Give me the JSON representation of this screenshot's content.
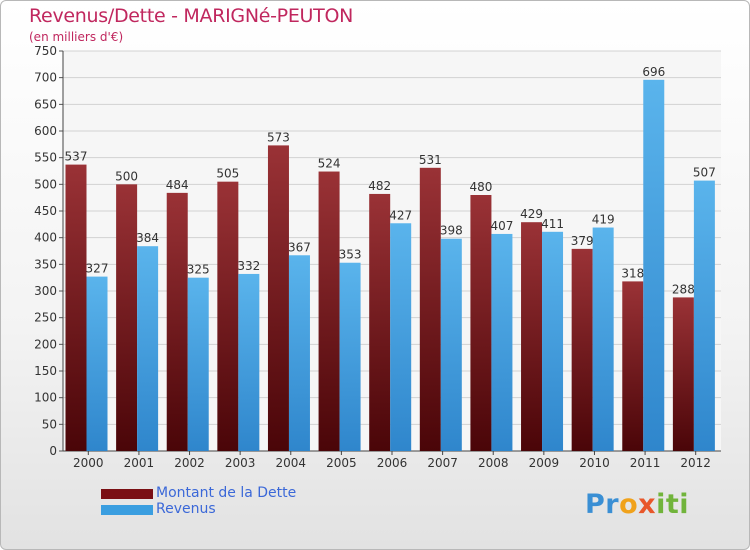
{
  "header": {
    "title": "Revenus/Dette - MARIGNé-PEUTON",
    "subtitle": "(en milliers d'€)"
  },
  "legend": {
    "items": [
      {
        "label": "Montant de la Dette",
        "color": "#7a0f14"
      },
      {
        "label": "Revenus",
        "color": "#3a9ee0"
      }
    ]
  },
  "logo": {
    "text": "Proxiti",
    "p1": "Pr",
    "p2": "o",
    "p3": "x",
    "p4": "iti"
  },
  "colors": {
    "title": "#c0275e",
    "dette_top": "#9a3236",
    "dette_bottom": "#4a0508",
    "revenus_top": "#5ab4ec",
    "revenus_bottom": "#2f86cc"
  },
  "chart_data": {
    "type": "bar",
    "title": "Revenus/Dette - MARIGNé-PEUTON",
    "subtitle": "(en milliers d'€)",
    "categories": [
      "2000",
      "2001",
      "2002",
      "2003",
      "2004",
      "2005",
      "2006",
      "2007",
      "2008",
      "2009",
      "2010",
      "2011",
      "2012"
    ],
    "series": [
      {
        "name": "Montant de la Dette",
        "values": [
          537,
          500,
          484,
          505,
          573,
          524,
          482,
          531,
          480,
          429,
          379,
          318,
          288
        ]
      },
      {
        "name": "Revenus",
        "values": [
          327,
          384,
          325,
          332,
          367,
          353,
          427,
          398,
          407,
          411,
          419,
          696,
          507
        ]
      }
    ],
    "ylim": [
      0,
      750
    ],
    "yticks": [
      0,
      50,
      100,
      150,
      200,
      250,
      300,
      350,
      400,
      450,
      500,
      550,
      600,
      650,
      700,
      750
    ],
    "grid": true,
    "legend": "bottom-left"
  }
}
